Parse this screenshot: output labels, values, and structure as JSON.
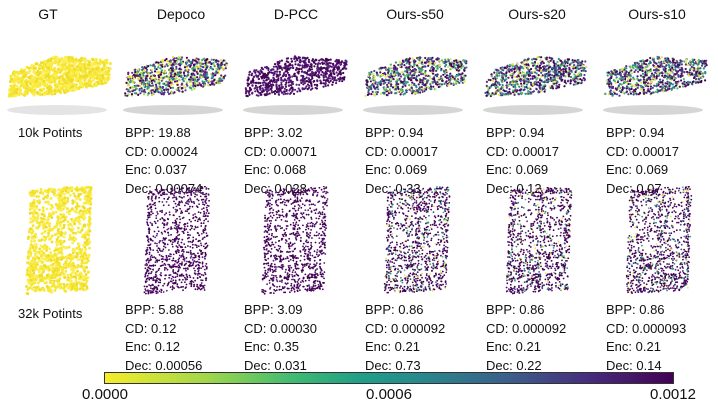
{
  "columns": [
    "GT",
    "Depoco",
    "D-PCC",
    "Ours-s50",
    "Ours-s20",
    "Ours-s10"
  ],
  "rows": [
    {
      "label": "10k Potints",
      "object": "car",
      "methods": [
        {
          "name": "Depoco",
          "lines": [
            "BPP: 19.88",
            "CD: 0.00024",
            "Enc: 0.037",
            "Dec: 0.00074"
          ]
        },
        {
          "name": "D-PCC",
          "lines": [
            "BPP: 3.02",
            "CD: 0.00071",
            "Enc: 0.068",
            "Dec: 0.028"
          ]
        },
        {
          "name": "Ours-s50",
          "lines": [
            "BPP: 0.94",
            "CD: 0.00017",
            "Enc: 0.069",
            "Dec: 0.33"
          ]
        },
        {
          "name": "Ours-s20",
          "lines": [
            "BPP: 0.94",
            "CD: 0.00017",
            "Enc: 0.069",
            "Dec: 0.12"
          ]
        },
        {
          "name": "Ours-s10",
          "lines": [
            "BPP: 0.94",
            "CD: 0.00017",
            "Enc: 0.069",
            "Dec: 0.07"
          ]
        }
      ]
    },
    {
      "label": "32k Potints",
      "object": "bookshelf",
      "methods": [
        {
          "name": "Depoco",
          "lines": [
            "BPP: 5.88",
            "CD: 0.12",
            "Enc: 0.12",
            "Dec: 0.00056"
          ]
        },
        {
          "name": "D-PCC",
          "lines": [
            "BPP: 3.09",
            "CD: 0.00030",
            "Enc: 0.35",
            "Dec: 0.031"
          ]
        },
        {
          "name": "Ours-s50",
          "lines": [
            "BPP: 0.86",
            "CD: 0.000092",
            "Enc: 0.21",
            "Dec: 0.73"
          ]
        },
        {
          "name": "Ours-s20",
          "lines": [
            "BPP: 0.86",
            "CD: 0.000092",
            "Enc: 0.21",
            "Dec: 0.22"
          ]
        },
        {
          "name": "Ours-s10",
          "lines": [
            "BPP: 0.86",
            "CD: 0.000093",
            "Enc: 0.21",
            "Dec: 0.14"
          ]
        }
      ]
    }
  ],
  "colorbar": {
    "ticks": [
      "0.0000",
      "0.0006",
      "0.0012"
    ],
    "min": 0.0,
    "max": 0.0012,
    "colors": [
      "#f7ec2a",
      "#3fbb72",
      "#278a8c",
      "#472a7a",
      "#440154"
    ]
  }
}
